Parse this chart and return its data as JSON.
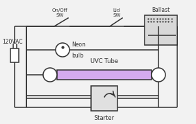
{
  "bg_color": "#f2f2f2",
  "line_color": "#333333",
  "uvc_tube_fill": "#d4aaee",
  "ballast_fill": "#d8d8d8",
  "starter_fill": "#e0e0e0",
  "labels": {
    "vac": "120VAC",
    "onoff": "On/Off",
    "sw1": "SW",
    "lid": "Lid",
    "sw2": "SW",
    "ballast": "Ballast",
    "neon": "Neon",
    "bulb": "bulb",
    "uvc": "UVC Tube",
    "starter": "Starter"
  },
  "figsize": [
    2.82,
    1.79
  ],
  "dpi": 100
}
